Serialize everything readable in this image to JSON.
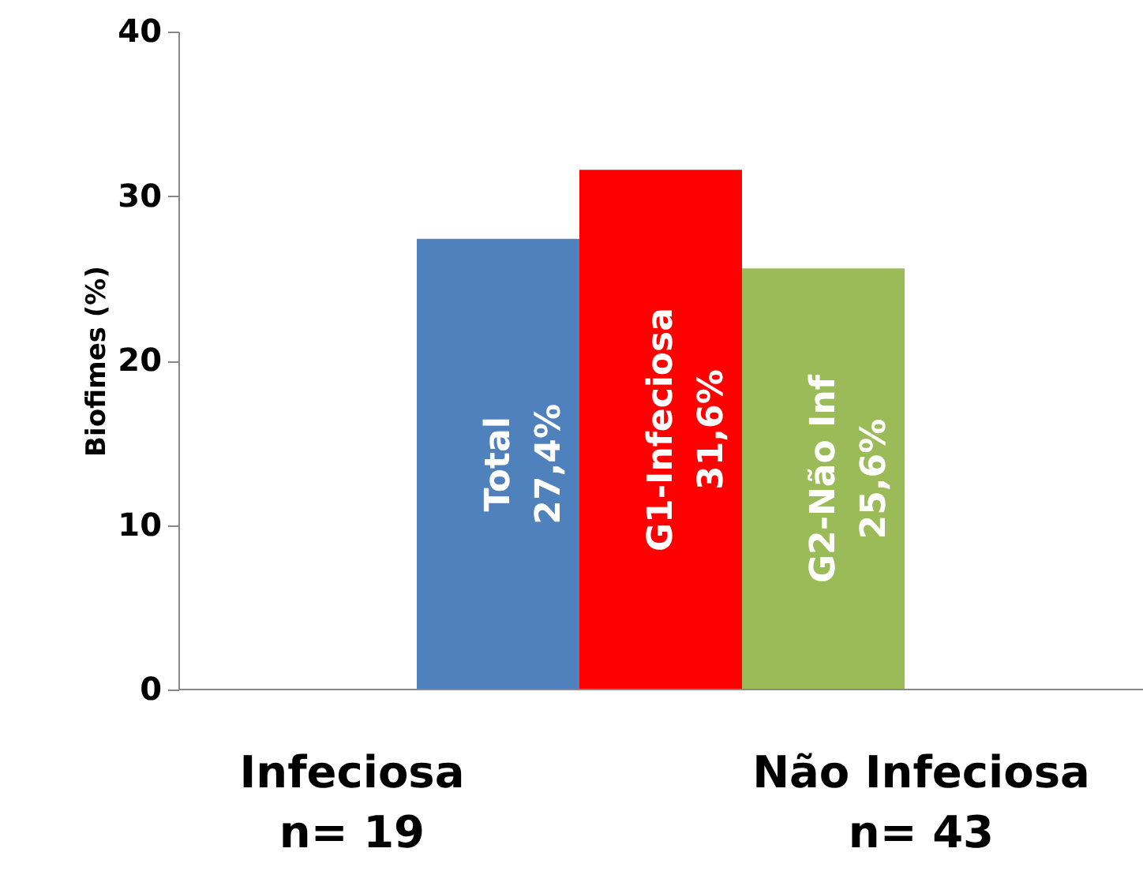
{
  "chart_data": {
    "type": "bar",
    "ylabel": "Biofimes (%)",
    "categories": [
      "Total",
      "G1-Infeciosa",
      "G2-Não Inf"
    ],
    "values": [
      27.4,
      31.6,
      25.6
    ],
    "colors": [
      "#4f81bd",
      "#ff0000",
      "#9bbb59"
    ],
    "value_labels": [
      "27,4%",
      "31,6%",
      "25,6%"
    ],
    "ylim": [
      0,
      40
    ],
    "yticks": [
      0,
      10,
      20,
      30,
      40
    ],
    "grid": false,
    "annotations": [
      "Infeciosa\nn= 19",
      "Não Infeciosa\nn= 43"
    ]
  }
}
